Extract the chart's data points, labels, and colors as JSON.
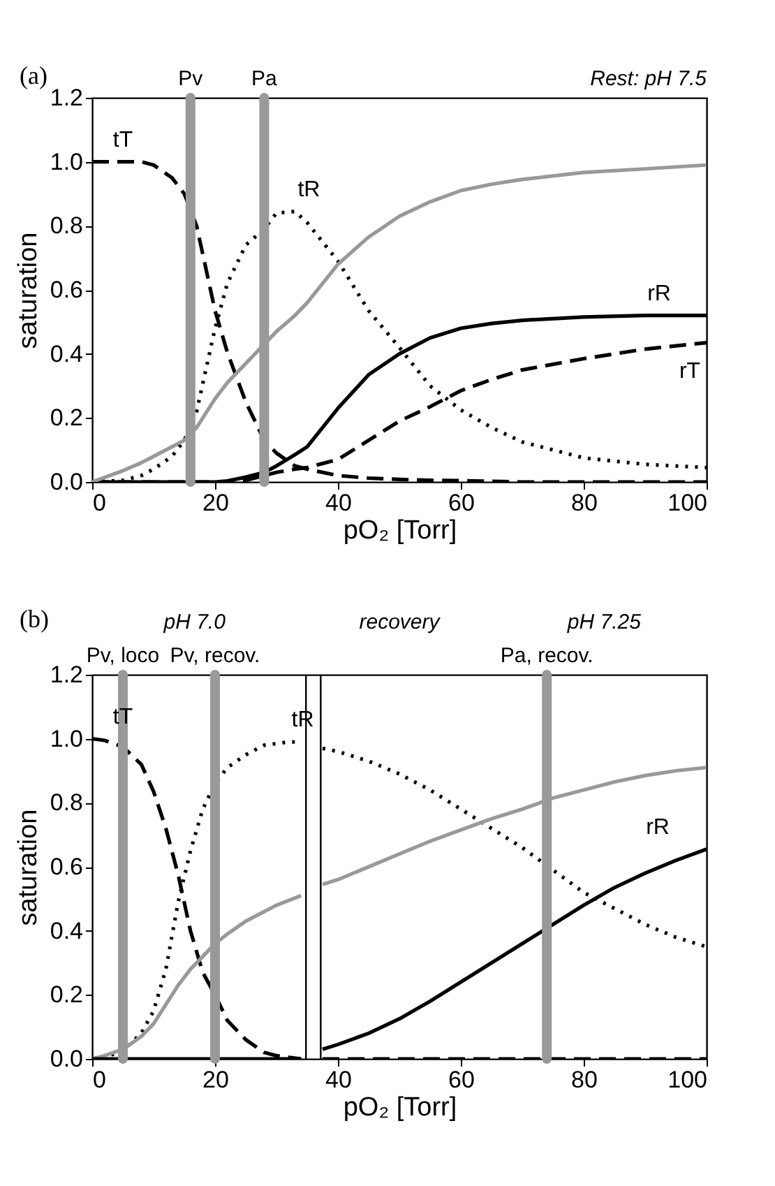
{
  "chart_data": [
    {
      "type": "line",
      "xlabel": "pO₂ [Torr]",
      "ylabel": "saturation",
      "annotations": [
        "(a)",
        "Rest: pH 7.5"
      ],
      "x": [
        0,
        5,
        8,
        10,
        13,
        15,
        17,
        20,
        22,
        25,
        28,
        30,
        33,
        35,
        40,
        45,
        50,
        55,
        60,
        65,
        70,
        80,
        90,
        100
      ],
      "series": [
        {
          "name": "tT",
          "color": "#000000",
          "line_style": "dashed",
          "values": [
            1,
            1,
            1,
            0.99,
            0.95,
            0.9,
            0.8,
            0.535,
            0.405,
            0.25,
            0.13,
            0.09,
            0.05,
            0.04,
            0.02,
            0.012,
            0.008,
            0.005,
            0.004,
            0.002,
            0,
            0,
            0,
            0
          ]
        },
        {
          "name": "tR",
          "color": "#000000",
          "line_style": "dotted",
          "values": [
            0,
            0.005,
            0.02,
            0.04,
            0.08,
            0.13,
            0.22,
            0.48,
            0.62,
            0.74,
            0.79,
            0.84,
            0.845,
            0.81,
            0.69,
            0.535,
            0.42,
            0.3,
            0.225,
            0.17,
            0.125,
            0.075,
            0.055,
            0.045
          ]
        },
        {
          "name": "rR",
          "color": "#000000",
          "line_style": "solid",
          "values": [
            0,
            0,
            0,
            0,
            0,
            0,
            0,
            0,
            0.003,
            0.015,
            0.03,
            0.05,
            0.085,
            0.11,
            0.23,
            0.335,
            0.4,
            0.45,
            0.48,
            0.495,
            0.505,
            0.515,
            0.52,
            0.52
          ]
        },
        {
          "name": "rT",
          "color": "#000000",
          "line_style": "dashed",
          "values": [
            0,
            0,
            0,
            0,
            0,
            0,
            0,
            0,
            0,
            0.005,
            0.02,
            0.03,
            0.04,
            0.045,
            0.07,
            0.13,
            0.19,
            0.235,
            0.285,
            0.32,
            0.35,
            0.385,
            0.415,
            0.435
          ]
        },
        {
          "color": "#999999",
          "line_style": "solid",
          "values": [
            0,
            0.035,
            0.06,
            0.08,
            0.11,
            0.13,
            0.17,
            0.26,
            0.31,
            0.37,
            0.43,
            0.47,
            0.52,
            0.56,
            0.68,
            0.765,
            0.83,
            0.875,
            0.91,
            0.93,
            0.945,
            0.967,
            0.978,
            0.99
          ]
        }
      ],
      "ref_lines": [
        {
          "axis": "x",
          "value": 16,
          "label": "Pv",
          "color": "#999999"
        },
        {
          "axis": "x",
          "value": 28,
          "label": "Pa",
          "color": "#999999"
        }
      ],
      "xlim": [
        0,
        100
      ],
      "xticks": [
        0,
        20,
        40,
        60,
        80,
        100
      ],
      "ylim": [
        0,
        1.2
      ],
      "yticks": [
        {
          "value": 0,
          "label": "0.0"
        },
        {
          "value": 0.2,
          "label": "0.2"
        },
        {
          "value": 0.4,
          "label": "0.4"
        },
        {
          "value": 0.6,
          "label": "0.6"
        },
        {
          "value": 0.8,
          "label": "0.8"
        },
        {
          "value": 1,
          "label": "1.0"
        },
        {
          "value": 1.2,
          "label": "1.2"
        }
      ],
      "grid": false
    },
    {
      "type": "line",
      "xlabel": "pO₂ [Torr]",
      "ylabel": "saturation",
      "annotations": [
        "(b)",
        "pH 7.0",
        "recovery",
        "pH 7.25"
      ],
      "x": [
        0,
        2,
        5,
        8,
        10,
        12,
        14,
        16,
        18,
        20,
        22,
        25,
        28,
        30,
        32,
        34,
        36,
        37.5,
        40,
        45,
        50,
        55,
        60,
        65,
        70,
        75,
        80,
        85,
        90,
        95,
        100
      ],
      "series": [
        {
          "name": "tT",
          "color": "#000000",
          "line_style": "dashed",
          "values": [
            1,
            0.995,
            0.975,
            0.92,
            0.835,
            0.72,
            0.575,
            0.4,
            0.27,
            0.2,
            0.12,
            0.06,
            0.02,
            0.01,
            0.005,
            0,
            null,
            0,
            0,
            0,
            0,
            0,
            0,
            0,
            0,
            0,
            0,
            0,
            0,
            0,
            0
          ]
        },
        {
          "name": "tR",
          "color": "#000000",
          "line_style": "dotted",
          "values": [
            0,
            0.005,
            0.025,
            0.08,
            0.15,
            0.28,
            0.49,
            0.65,
            0.78,
            0.86,
            0.91,
            0.95,
            0.98,
            0.985,
            0.99,
            0.99,
            null,
            0.97,
            0.96,
            0.93,
            0.89,
            0.84,
            0.78,
            0.72,
            0.66,
            0.59,
            0.52,
            0.47,
            0.42,
            0.38,
            0.35
          ]
        },
        {
          "color": "#999999",
          "line_style": "solid",
          "values": [
            0,
            0.01,
            0.03,
            0.07,
            0.11,
            0.17,
            0.23,
            0.28,
            0.32,
            0.36,
            0.39,
            0.43,
            0.46,
            0.48,
            0.495,
            0.51,
            null,
            0.545,
            0.56,
            0.6,
            0.64,
            0.68,
            0.715,
            0.75,
            0.78,
            0.815,
            0.84,
            0.865,
            0.885,
            0.9,
            0.91
          ]
        },
        {
          "name": "rR",
          "color": "#000000",
          "line_style": "solid",
          "values": [
            0,
            0,
            0,
            0,
            0,
            0,
            0,
            0,
            0,
            0,
            0,
            0,
            0,
            0,
            0,
            0,
            null,
            0.03,
            0.045,
            0.08,
            0.125,
            0.18,
            0.24,
            0.3,
            0.36,
            0.42,
            0.48,
            0.535,
            0.58,
            0.62,
            0.655
          ]
        }
      ],
      "ref_lines": [
        {
          "axis": "x",
          "value": 5,
          "label": "Pv, loco",
          "color": "#999999"
        },
        {
          "axis": "x",
          "value": 20,
          "label": "Pv, recov.",
          "color": "#999999"
        },
        {
          "axis": "x",
          "value": 74,
          "label": "Pa, recov.",
          "color": "#999999"
        },
        {
          "axis": "x",
          "value": 34.8,
          "color": "#000000"
        },
        {
          "axis": "x",
          "value": 37.2,
          "color": "#000000"
        }
      ],
      "xlim": [
        0,
        100
      ],
      "xticks": [
        0,
        20,
        40,
        60,
        80,
        100
      ],
      "ylim": [
        0,
        1.2
      ],
      "yticks": [
        {
          "value": 0,
          "label": "0.0"
        },
        {
          "value": 0.2,
          "label": "0.2"
        },
        {
          "value": 0.4,
          "label": "0.4"
        },
        {
          "value": 0.6,
          "label": "0.6"
        },
        {
          "value": 0.8,
          "label": "0.8"
        },
        {
          "value": 1,
          "label": "1.0"
        },
        {
          "value": 1.2,
          "label": "1.2"
        }
      ],
      "grid": false
    }
  ]
}
